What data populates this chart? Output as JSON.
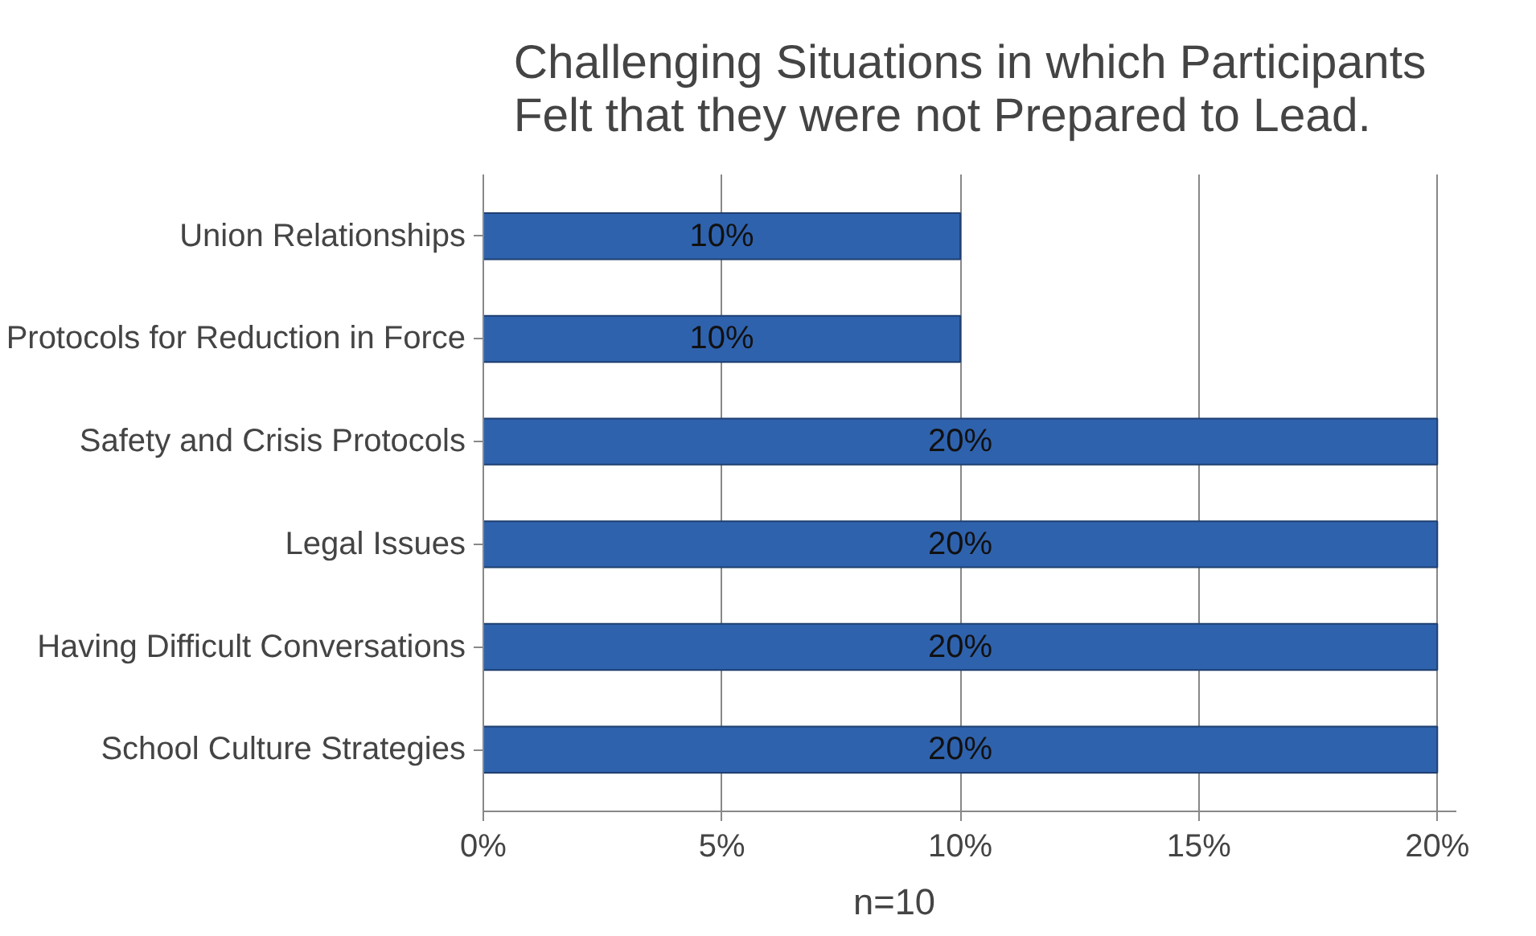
{
  "chart_data": {
    "type": "bar",
    "orientation": "horizontal",
    "title": "Challenging Situations in which Participants Felt that they were not Prepared to Lead.",
    "categories": [
      "Union Relationships",
      "Protocols for Reduction in Force",
      "Safety and Crisis Protocols",
      "Legal Issues",
      "Having Difficult Conversations",
      "School Culture Strategies"
    ],
    "values": [
      10,
      10,
      20,
      20,
      20,
      20
    ],
    "value_labels": [
      "10%",
      "10%",
      "20%",
      "20%",
      "20%",
      "20%"
    ],
    "color": "#2f62ad",
    "xlim": [
      0,
      20
    ],
    "xticks": [
      {
        "value": 0,
        "label": "0%"
      },
      {
        "value": 5,
        "label": "5%"
      },
      {
        "value": 10,
        "label": "10%"
      },
      {
        "value": 15,
        "label": "15%"
      },
      {
        "value": 20,
        "label": "20%"
      }
    ],
    "grid": "x",
    "annotations": [
      "n=10"
    ]
  }
}
